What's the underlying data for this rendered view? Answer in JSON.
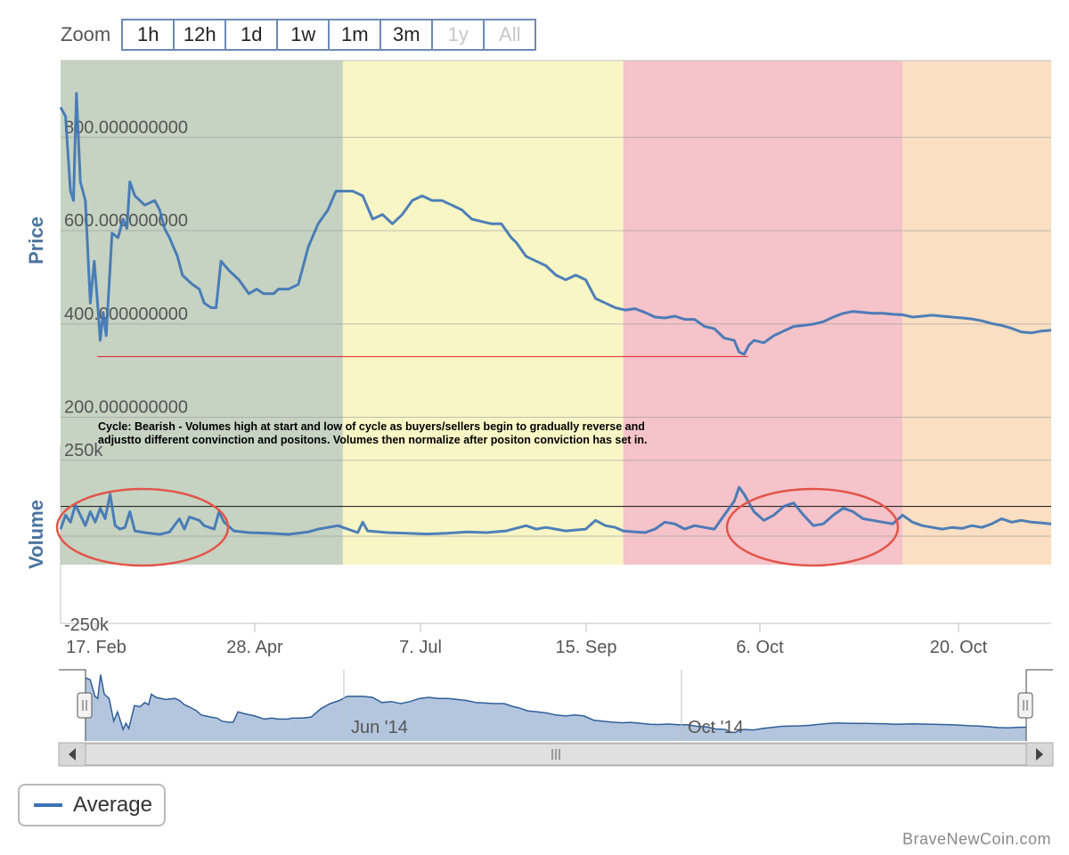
{
  "zoom": {
    "label": "Zoom",
    "buttons": [
      {
        "label": "1h",
        "enabled": true
      },
      {
        "label": "12h",
        "enabled": true
      },
      {
        "label": "1d",
        "enabled": true
      },
      {
        "label": "1w",
        "enabled": true
      },
      {
        "label": "1m",
        "enabled": true
      },
      {
        "label": "3m",
        "enabled": true
      },
      {
        "label": "1y",
        "enabled": false
      },
      {
        "label": "All",
        "enabled": false
      }
    ]
  },
  "chart_data": {
    "type": "line",
    "price_axis": {
      "title": "Price",
      "ticks": [
        "200.000000000",
        "400.000000000",
        "600.000000000",
        "800.000000000"
      ],
      "tick_values": [
        200,
        400,
        600,
        800
      ],
      "range": [
        115,
        940
      ]
    },
    "volume_axis": {
      "title": "Volume",
      "ticks": [
        "250k",
        "-250k"
      ],
      "tick_values": [
        250000,
        -250000
      ],
      "range": [
        -250000,
        260000
      ]
    },
    "x_axis": {
      "ticks": [
        "17. Feb",
        "28. Apr",
        "7. Jul",
        "15. Sep",
        "6. Oct",
        "20. Oct"
      ]
    },
    "navigator": {
      "labels": [
        "Jun '14",
        "Oct '14"
      ]
    },
    "colors": {
      "line": "#3b73b5",
      "band_green": "#c6d3c3",
      "band_yellow": "#f9f6c6",
      "band_pink": "#f5c3c9",
      "band_orange": "#fadfc3",
      "annotation_red": "#e2554a",
      "navigator_fill": "#b4c6de"
    },
    "bands": [
      {
        "from": 0,
        "to": 0.285,
        "color": "#c6d3c3"
      },
      {
        "from": 0.285,
        "to": 0.568,
        "color": "#f9f6c6"
      },
      {
        "from": 0.568,
        "to": 0.85,
        "color": "#f5c3c9"
      },
      {
        "from": 0.85,
        "to": 1,
        "color": "#fadfc3"
      }
    ],
    "annotation": {
      "text_line1": "Cycle: Bearish - Volumes high at start and low of cycle as buyers/sellers begin to gradually reverse and",
      "text_line2": "adjustto different convinction and positons. Volumes then normalize after positon conviction has set in."
    },
    "reference_lines": {
      "price_low": 330,
      "volume_level": 85000
    },
    "series": [
      {
        "name": "Average",
        "price": [
          [
            0,
            840
          ],
          [
            0.005,
            820
          ],
          [
            0.01,
            660
          ],
          [
            0.013,
            640
          ],
          [
            0.016,
            870
          ],
          [
            0.02,
            680
          ],
          [
            0.025,
            640
          ],
          [
            0.03,
            420
          ],
          [
            0.034,
            510
          ],
          [
            0.038,
            400
          ],
          [
            0.04,
            340
          ],
          [
            0.043,
            400
          ],
          [
            0.046,
            350
          ],
          [
            0.052,
            570
          ],
          [
            0.058,
            560
          ],
          [
            0.063,
            600
          ],
          [
            0.067,
            580
          ],
          [
            0.07,
            680
          ],
          [
            0.075,
            650
          ],
          [
            0.085,
            630
          ],
          [
            0.095,
            640
          ],
          [
            0.1,
            620
          ],
          [
            0.105,
            580
          ],
          [
            0.11,
            560
          ],
          [
            0.118,
            520
          ],
          [
            0.123,
            480
          ],
          [
            0.128,
            470
          ],
          [
            0.133,
            460
          ],
          [
            0.14,
            450
          ],
          [
            0.145,
            420
          ],
          [
            0.152,
            410
          ],
          [
            0.157,
            410
          ],
          [
            0.162,
            510
          ],
          [
            0.17,
            490
          ],
          [
            0.18,
            470
          ],
          [
            0.19,
            440
          ],
          [
            0.198,
            450
          ],
          [
            0.205,
            440
          ],
          [
            0.215,
            440
          ],
          [
            0.22,
            450
          ],
          [
            0.23,
            450
          ],
          [
            0.24,
            460
          ],
          [
            0.25,
            540
          ],
          [
            0.26,
            590
          ],
          [
            0.27,
            620
          ],
          [
            0.278,
            660
          ],
          [
            0.285,
            660
          ],
          [
            0.295,
            660
          ],
          [
            0.305,
            650
          ],
          [
            0.315,
            600
          ],
          [
            0.325,
            610
          ],
          [
            0.335,
            590
          ],
          [
            0.345,
            610
          ],
          [
            0.355,
            640
          ],
          [
            0.365,
            650
          ],
          [
            0.375,
            640
          ],
          [
            0.385,
            640
          ],
          [
            0.395,
            630
          ],
          [
            0.405,
            620
          ],
          [
            0.415,
            600
          ],
          [
            0.425,
            595
          ],
          [
            0.435,
            590
          ],
          [
            0.445,
            590
          ],
          [
            0.455,
            560
          ],
          [
            0.46,
            550
          ],
          [
            0.47,
            520
          ],
          [
            0.48,
            510
          ],
          [
            0.49,
            500
          ],
          [
            0.5,
            480
          ],
          [
            0.51,
            470
          ],
          [
            0.52,
            480
          ],
          [
            0.53,
            470
          ],
          [
            0.54,
            430
          ],
          [
            0.55,
            420
          ],
          [
            0.56,
            410
          ],
          [
            0.57,
            405
          ],
          [
            0.58,
            408
          ],
          [
            0.59,
            400
          ],
          [
            0.6,
            390
          ],
          [
            0.61,
            388
          ],
          [
            0.62,
            392
          ],
          [
            0.63,
            385
          ],
          [
            0.64,
            385
          ],
          [
            0.65,
            370
          ],
          [
            0.66,
            365
          ],
          [
            0.67,
            345
          ],
          [
            0.68,
            340
          ],
          [
            0.685,
            315
          ],
          [
            0.69,
            310
          ],
          [
            0.695,
            330
          ],
          [
            0.7,
            340
          ],
          [
            0.71,
            335
          ],
          [
            0.72,
            350
          ],
          [
            0.73,
            360
          ],
          [
            0.74,
            370
          ],
          [
            0.75,
            372
          ],
          [
            0.76,
            375
          ],
          [
            0.77,
            380
          ],
          [
            0.78,
            390
          ],
          [
            0.79,
            398
          ],
          [
            0.8,
            402
          ],
          [
            0.81,
            400
          ],
          [
            0.82,
            398
          ],
          [
            0.83,
            398
          ],
          [
            0.84,
            396
          ],
          [
            0.85,
            395
          ],
          [
            0.86,
            390
          ],
          [
            0.87,
            392
          ],
          [
            0.88,
            394
          ],
          [
            0.89,
            392
          ],
          [
            0.9,
            390
          ],
          [
            0.91,
            388
          ],
          [
            0.92,
            386
          ],
          [
            0.93,
            382
          ],
          [
            0.94,
            376
          ],
          [
            0.95,
            372
          ],
          [
            0.96,
            366
          ],
          [
            0.97,
            358
          ],
          [
            0.98,
            356
          ],
          [
            0.99,
            360
          ],
          [
            1,
            362
          ]
        ],
        "volume": [
          [
            0,
            20000
          ],
          [
            0.005,
            60000
          ],
          [
            0.01,
            40000
          ],
          [
            0.015,
            90000
          ],
          [
            0.02,
            60000
          ],
          [
            0.025,
            30000
          ],
          [
            0.03,
            70000
          ],
          [
            0.035,
            40000
          ],
          [
            0.04,
            80000
          ],
          [
            0.045,
            50000
          ],
          [
            0.05,
            120000
          ],
          [
            0.055,
            30000
          ],
          [
            0.06,
            20000
          ],
          [
            0.065,
            25000
          ],
          [
            0.07,
            70000
          ],
          [
            0.075,
            15000
          ],
          [
            0.085,
            10000
          ],
          [
            0.1,
            5000
          ],
          [
            0.11,
            12000
          ],
          [
            0.12,
            50000
          ],
          [
            0.125,
            20000
          ],
          [
            0.13,
            55000
          ],
          [
            0.14,
            45000
          ],
          [
            0.145,
            30000
          ],
          [
            0.155,
            20000
          ],
          [
            0.16,
            70000
          ],
          [
            0.165,
            40000
          ],
          [
            0.175,
            15000
          ],
          [
            0.19,
            10000
          ],
          [
            0.21,
            8000
          ],
          [
            0.23,
            5000
          ],
          [
            0.25,
            12000
          ],
          [
            0.26,
            20000
          ],
          [
            0.27,
            25000
          ],
          [
            0.28,
            30000
          ],
          [
            0.285,
            25000
          ],
          [
            0.3,
            10000
          ],
          [
            0.305,
            40000
          ],
          [
            0.31,
            15000
          ],
          [
            0.33,
            10000
          ],
          [
            0.35,
            8000
          ],
          [
            0.37,
            6000
          ],
          [
            0.39,
            8000
          ],
          [
            0.41,
            12000
          ],
          [
            0.43,
            10000
          ],
          [
            0.45,
            15000
          ],
          [
            0.47,
            30000
          ],
          [
            0.48,
            20000
          ],
          [
            0.49,
            25000
          ],
          [
            0.51,
            15000
          ],
          [
            0.53,
            20000
          ],
          [
            0.54,
            45000
          ],
          [
            0.55,
            30000
          ],
          [
            0.56,
            25000
          ],
          [
            0.568,
            15000
          ],
          [
            0.58,
            12000
          ],
          [
            0.59,
            10000
          ],
          [
            0.6,
            20000
          ],
          [
            0.61,
            40000
          ],
          [
            0.62,
            35000
          ],
          [
            0.63,
            20000
          ],
          [
            0.64,
            30000
          ],
          [
            0.65,
            25000
          ],
          [
            0.66,
            20000
          ],
          [
            0.67,
            60000
          ],
          [
            0.68,
            100000
          ],
          [
            0.685,
            140000
          ],
          [
            0.69,
            120000
          ],
          [
            0.7,
            70000
          ],
          [
            0.71,
            45000
          ],
          [
            0.72,
            60000
          ],
          [
            0.73,
            85000
          ],
          [
            0.74,
            95000
          ],
          [
            0.75,
            60000
          ],
          [
            0.76,
            30000
          ],
          [
            0.77,
            35000
          ],
          [
            0.78,
            60000
          ],
          [
            0.79,
            80000
          ],
          [
            0.8,
            70000
          ],
          [
            0.81,
            50000
          ],
          [
            0.82,
            45000
          ],
          [
            0.83,
            40000
          ],
          [
            0.84,
            35000
          ],
          [
            0.85,
            60000
          ],
          [
            0.86,
            40000
          ],
          [
            0.87,
            30000
          ],
          [
            0.88,
            25000
          ],
          [
            0.89,
            20000
          ],
          [
            0.9,
            25000
          ],
          [
            0.91,
            22000
          ],
          [
            0.92,
            30000
          ],
          [
            0.93,
            25000
          ],
          [
            0.94,
            35000
          ],
          [
            0.95,
            50000
          ],
          [
            0.96,
            40000
          ],
          [
            0.97,
            45000
          ],
          [
            0.98,
            40000
          ],
          [
            0.99,
            38000
          ],
          [
            1,
            35000
          ]
        ]
      }
    ]
  },
  "legend": {
    "label": "Average"
  },
  "credit": "BraveNewCoin.com"
}
